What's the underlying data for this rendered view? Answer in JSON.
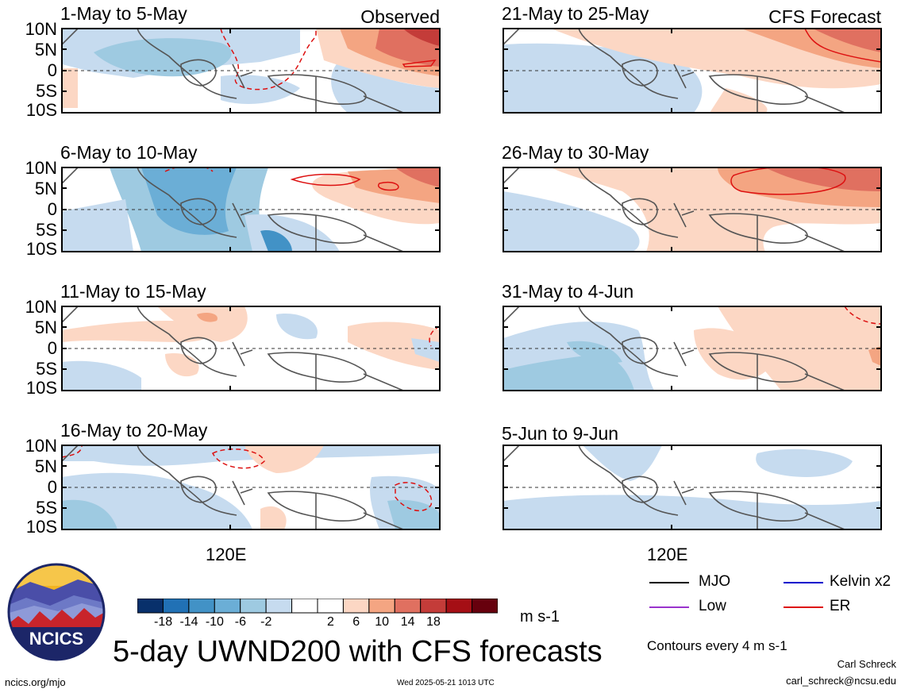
{
  "panels": [
    {
      "title": "1-May to 5-May",
      "corner": "Observed"
    },
    {
      "title": "21-May to 25-May",
      "corner": "CFS Forecast"
    },
    {
      "title": "6-May to 10-May",
      "corner": ""
    },
    {
      "title": "26-May to 30-May",
      "corner": ""
    },
    {
      "title": "11-May to 15-May",
      "corner": ""
    },
    {
      "title": "31-May to 4-Jun",
      "corner": ""
    },
    {
      "title": "16-May to 20-May",
      "corner": ""
    },
    {
      "title": "5-Jun to 9-Jun",
      "corner": ""
    }
  ],
  "lat_labels": [
    "10N",
    "5N",
    "0",
    "5S",
    "10S"
  ],
  "lon_label": "120E",
  "colorbar": {
    "colors": [
      "#08306b",
      "#2171b5",
      "#4292c6",
      "#6baed6",
      "#9ecae1",
      "#c6dbef",
      "#ffffff",
      "#ffffff",
      "#fcd7c4",
      "#f4a582",
      "#e07060",
      "#c43c39",
      "#a50f15",
      "#67000d"
    ],
    "labels": [
      "-18",
      "-14",
      "-10",
      "-6",
      "-2",
      "2",
      "6",
      "10",
      "14",
      "18"
    ],
    "units": "m s-1"
  },
  "logo_text": "NCICS",
  "main_title": "5-day UWND200 with CFS forecasts",
  "legend": [
    {
      "label": "MJO",
      "color": "#000000"
    },
    {
      "label": "Kelvin x2",
      "color": "#0000cc"
    },
    {
      "label": "Low",
      "color": "#9933cc"
    },
    {
      "label": "ER",
      "color": "#dd1111"
    }
  ],
  "contours_note": "Contours every 4 m s-1",
  "author": "Carl Schreck",
  "email": "carl_schreck@ncsu.edu",
  "url": "ncics.org/mjo",
  "timestamp": "Wed 2025-05-21 1013 UTC"
}
